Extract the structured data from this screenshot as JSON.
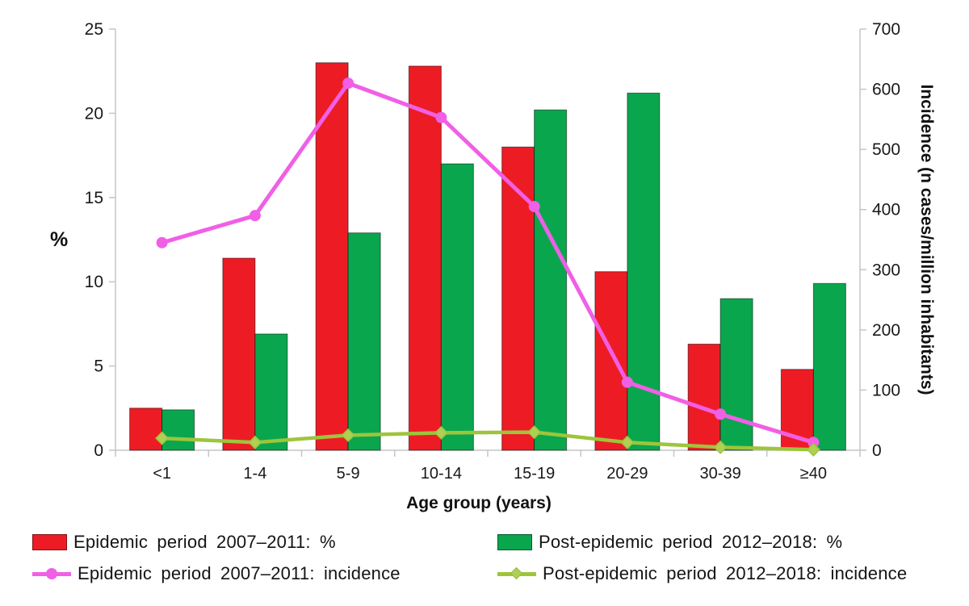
{
  "chart_data": {
    "type": "bar+line",
    "categories": [
      "<1",
      "1-4",
      "5-9",
      "10-14",
      "15-19",
      "20-29",
      "30-39",
      "≥40"
    ],
    "xlabel": "Age group (years)",
    "left_axis": {
      "label": "%",
      "min": 0,
      "max": 25,
      "ticks": [
        0,
        5,
        10,
        15,
        20,
        25
      ]
    },
    "right_axis": {
      "label": "Incidence (n cases/million inhabitants)",
      "min": 0,
      "max": 700,
      "ticks": [
        0,
        100,
        200,
        300,
        400,
        500,
        600,
        700
      ]
    },
    "grid": "off",
    "legend_position": "bottom-two-columns",
    "bar_series": [
      {
        "name": "Epidemic period 2007–2011: %",
        "color": "#ed1c24",
        "axis": "left",
        "values": [
          2.5,
          11.4,
          23.0,
          22.8,
          18.0,
          10.6,
          6.3,
          4.8
        ]
      },
      {
        "name": "Post-epidemic period 2012–2018: %",
        "color": "#0aa64e",
        "axis": "left",
        "values": [
          2.4,
          6.9,
          12.9,
          17.0,
          20.2,
          21.2,
          9.0,
          9.9
        ]
      }
    ],
    "line_series": [
      {
        "name": "Epidemic period 2007–2011: incidence",
        "color": "#f05fe6",
        "marker": "circle",
        "marker_fill": "#f05fe6",
        "axis": "right",
        "values": [
          345,
          390,
          610,
          553,
          405,
          113,
          60,
          13
        ]
      },
      {
        "name": "Post-epidemic period 2012–2018: incidence",
        "color": "#9dc53c",
        "marker": "diamond",
        "marker_fill": "#aed054",
        "axis": "right",
        "values": [
          20,
          13,
          25,
          29,
          30,
          13,
          5,
          1
        ]
      }
    ]
  }
}
